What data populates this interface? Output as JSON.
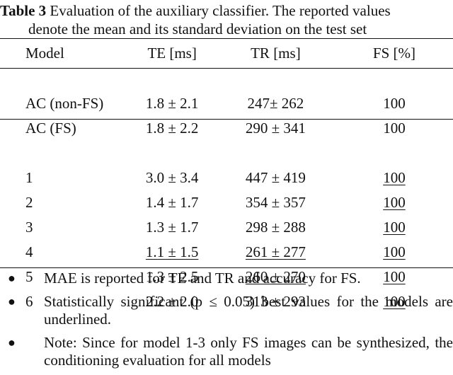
{
  "caption": {
    "label": "Table 3",
    "text_line1": "Evaluation of the auxiliary classifier. The reported values",
    "text_line2": "denote the mean and its standard deviation on the test set"
  },
  "table": {
    "headers": [
      "Model",
      "TE [ms]",
      "TR [ms]",
      "FS [%]"
    ],
    "baseline_rows": [
      {
        "model": "AC (non-FS)",
        "te": "1.8 ± 2.1",
        "tr": "247± 262",
        "fs": "100"
      },
      {
        "model": "AC (FS)",
        "te": "1.8 ± 2.2",
        "tr": "290 ± 341",
        "fs": "100"
      }
    ],
    "model_rows": [
      {
        "model": "1",
        "te": "3.0 ± 3.4",
        "tr": "447 ± 419",
        "fs": "100"
      },
      {
        "model": "2",
        "te": "1.4 ± 1.7",
        "tr": "354 ± 357",
        "fs": "100"
      },
      {
        "model": "3",
        "te": "1.3 ± 1.7",
        "tr": "298 ± 288",
        "fs": "100"
      },
      {
        "model": "4",
        "te": "1.1 ± 1.5",
        "tr": "261 ± 277",
        "fs": "100"
      },
      {
        "model": "5",
        "te": "1.3 ± 2.5",
        "tr": "260 ± 270",
        "fs": "100"
      },
      {
        "model": "6",
        "te": "2.2 ± 2.0",
        "tr": "313 ± 293",
        "fs": "100"
      }
    ]
  },
  "notes": [
    "MAE is reported for TE and TR and accuracy for FS.",
    "Statistically significant (p ≤ 0.05) best values for the models are underlined.",
    "Note: Since for model 1-3 only FS images can be synthesized, the conditioning evaluation for all models"
  ]
}
